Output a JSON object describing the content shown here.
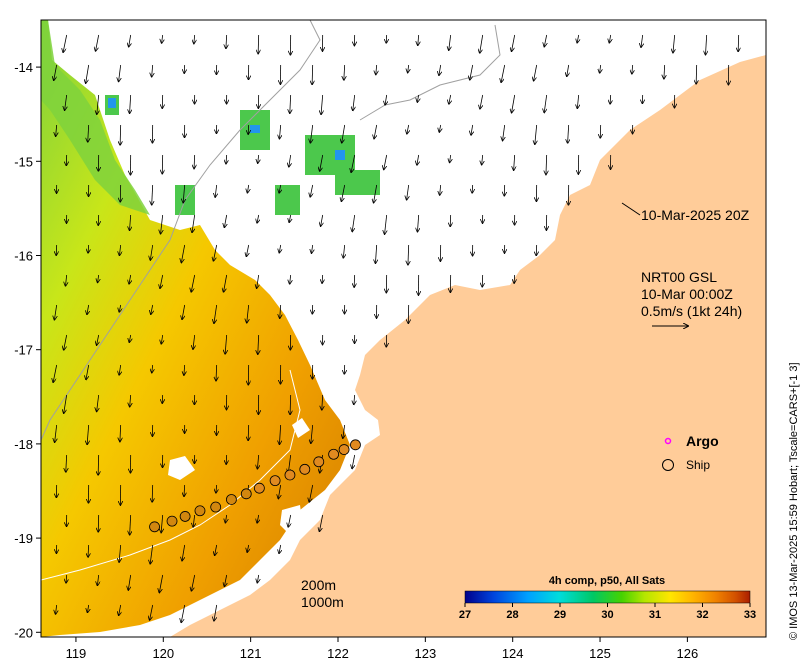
{
  "map": {
    "x_ticks": [
      "119",
      "120",
      "121",
      "122",
      "123",
      "124",
      "125",
      "126"
    ],
    "y_ticks": [
      "-14",
      "-15",
      "-16",
      "-17",
      "-18",
      "-19",
      "-20"
    ],
    "x_range": [
      118.6,
      126.9
    ],
    "y_range": [
      -20.05,
      -13.5
    ],
    "land_color": "#ffcc99",
    "arrow_color": "#000000"
  },
  "annotations": {
    "timestamp_label": "10-Mar-2025 20Z",
    "product_line1": "NRT00 GSL",
    "product_line2": "10-Mar 00:00Z",
    "scale_label": "0.5m/s (1kt 24h)",
    "isobath_200": "200m",
    "isobath_1000": "1000m"
  },
  "legend": {
    "argo_label": "Argo",
    "argo_color": "#ff00ff",
    "ship_label": "Ship"
  },
  "colorbar": {
    "title": "4h comp, p50, All Sats",
    "ticks": [
      "27",
      "28",
      "29",
      "30",
      "31",
      "32",
      "33"
    ],
    "range": [
      27,
      33
    ],
    "colors": [
      "#00008b",
      "#0044dd",
      "#00a0ff",
      "#00dcdc",
      "#00c864",
      "#46d200",
      "#b4e600",
      "#ffe600",
      "#ffb400",
      "#f08200",
      "#d25000",
      "#aa1e00"
    ]
  },
  "credit": "© IMOS 13-Mar-2025 15:59 Hobart; Tscale=CARS+[-1 3]",
  "ship_track": {
    "lon": [
      119.9,
      120.1,
      120.25,
      120.42,
      120.6,
      120.78,
      120.95,
      121.1,
      121.28,
      121.45,
      121.62,
      121.78,
      121.95,
      122.07,
      122.2
    ],
    "lat": [
      -18.88,
      -18.82,
      -18.77,
      -18.71,
      -18.67,
      -18.59,
      -18.53,
      -18.47,
      -18.39,
      -18.33,
      -18.27,
      -18.19,
      -18.11,
      -18.06,
      -18.01
    ]
  }
}
